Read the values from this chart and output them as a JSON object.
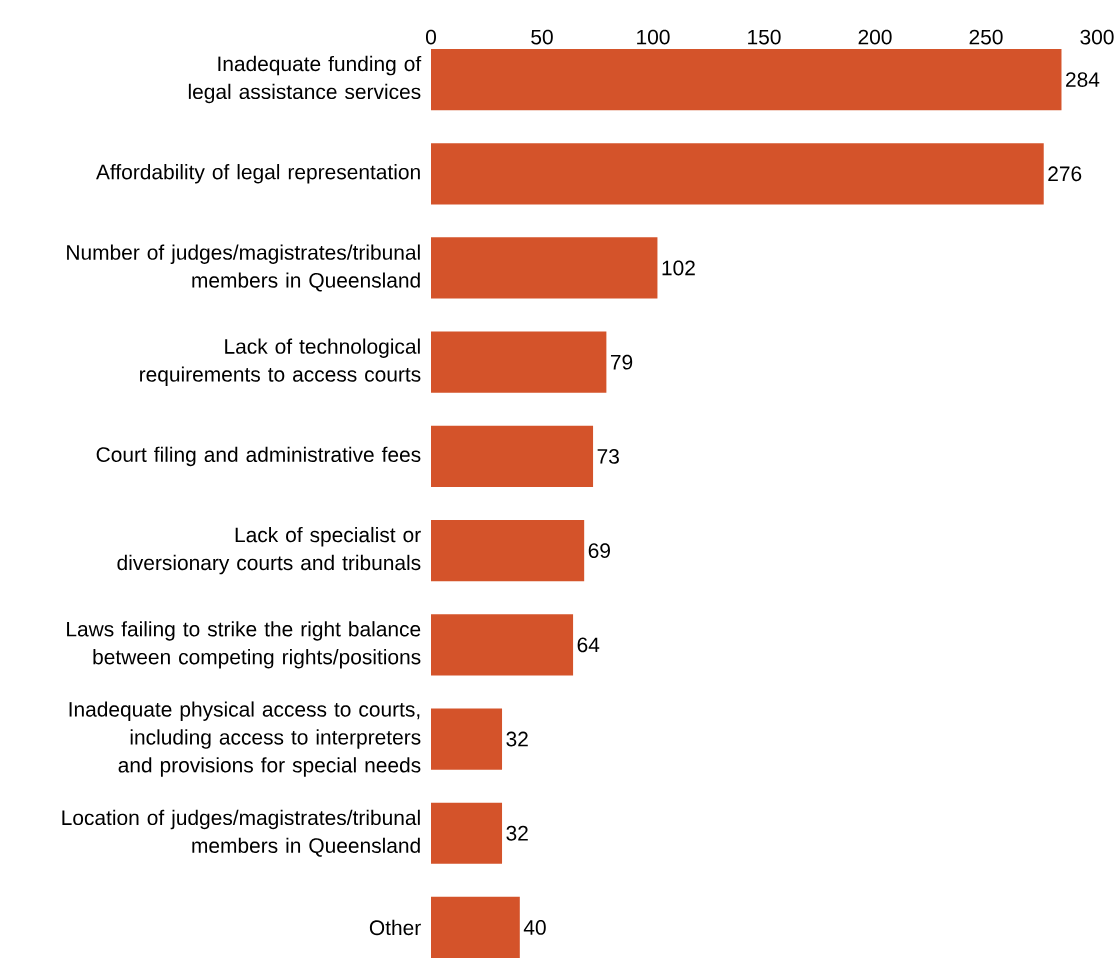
{
  "chart_data": {
    "type": "bar",
    "orientation": "horizontal",
    "categories": [
      "Inadequate funding of legal assistance services",
      "Affordability of legal representation",
      "Number of judges/magistrates/tribunal members in Queensland",
      "Lack of technological requirements to access courts",
      "Court filing and administrative fees",
      "Lack of specialist or diversionary courts and tribunals",
      "Laws failing to strike the right balance between competing rights/positions",
      "Inadequate physical access to courts, including access to interpreters and provisions for special needs",
      "Location of judges/magistrates/tribunal members in Queensland",
      "Other"
    ],
    "values": [
      284,
      276,
      102,
      79,
      73,
      69,
      64,
      32,
      32,
      40
    ],
    "color": "#d4532a",
    "xlim": [
      0,
      300
    ],
    "xticks": [
      0,
      50,
      100,
      150,
      200,
      250,
      300
    ],
    "data_labels": true
  }
}
